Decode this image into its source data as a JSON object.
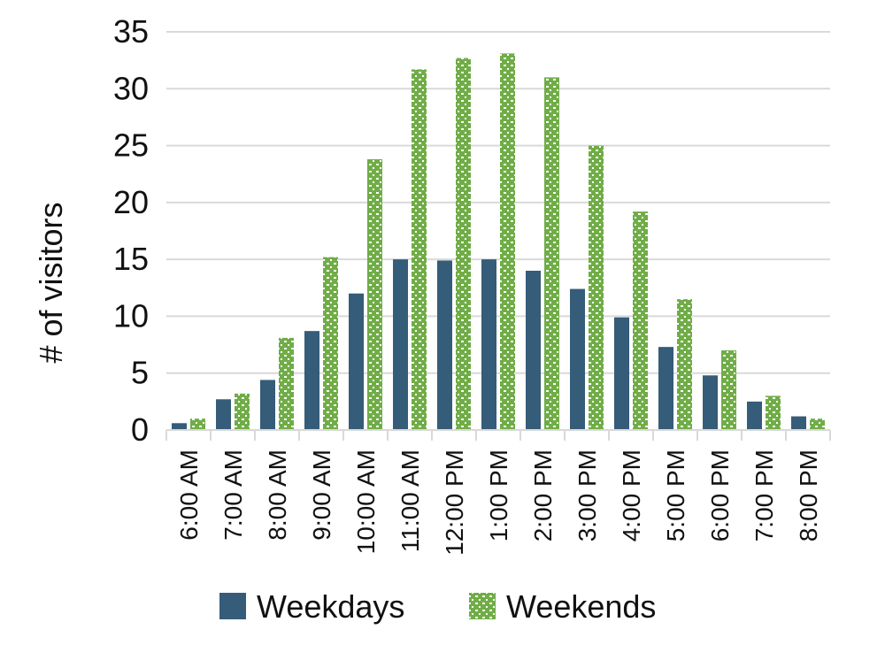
{
  "chart_data": {
    "type": "bar",
    "title": "",
    "xlabel": "",
    "ylabel": "# of visitors",
    "ylim": [
      0,
      35
    ],
    "yticks": [
      0,
      5,
      10,
      15,
      20,
      25,
      30,
      35
    ],
    "grid": true,
    "legend_position": "bottom",
    "categories": [
      "6:00 AM",
      "7:00 AM",
      "8:00 AM",
      "9:00 AM",
      "10:00 AM",
      "11:00 AM",
      "12:00 PM",
      "1:00 PM",
      "2:00 PM",
      "3:00 PM",
      "4:00 PM",
      "5:00 PM",
      "6:00 PM",
      "7:00 PM",
      "8:00 PM"
    ],
    "series": [
      {
        "name": "Weekdays",
        "color": "#355c78",
        "values": [
          0.6,
          2.7,
          4.4,
          8.7,
          12.0,
          15.0,
          14.9,
          15.0,
          14.0,
          12.4,
          9.9,
          7.3,
          4.8,
          2.5,
          1.2
        ]
      },
      {
        "name": "Weekends",
        "color": "#70ad47",
        "pattern": "dotted-checker",
        "values": [
          1.0,
          3.2,
          8.1,
          15.2,
          23.8,
          31.7,
          32.7,
          33.1,
          31.0,
          25.0,
          19.2,
          11.5,
          7.0,
          3.0,
          1.0
        ]
      }
    ]
  }
}
